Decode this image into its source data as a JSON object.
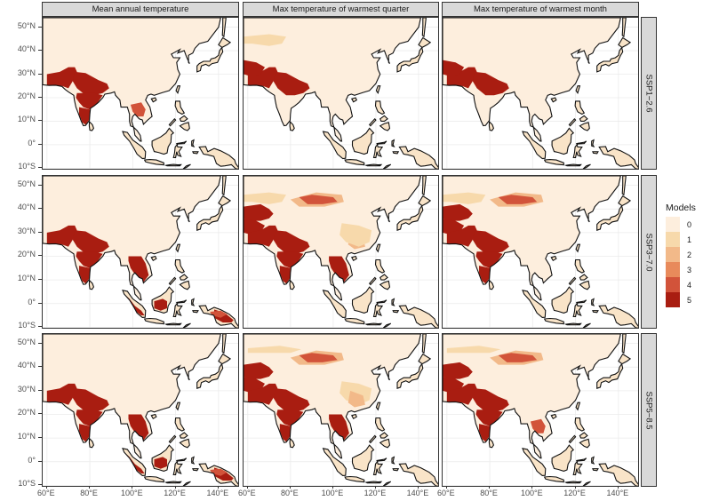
{
  "chart_data": {
    "type": "heatmap",
    "subtype": "faceted choropleth map grid",
    "columns": [
      "Mean annual temperature",
      "Max temperature of warmest quarter",
      "Max temperature of warmest month"
    ],
    "rows": [
      "SSP1−2.6",
      "SSP3−7.0",
      "SSP5−8.5"
    ],
    "legend": {
      "title": "Models",
      "position": "right",
      "levels": [
        {
          "value": "0",
          "color": "#fdeedd"
        },
        {
          "value": "1",
          "color": "#f7d9ab"
        },
        {
          "value": "2",
          "color": "#f2b989"
        },
        {
          "value": "3",
          "color": "#e88a5b"
        },
        {
          "value": "4",
          "color": "#d2533a"
        },
        {
          "value": "5",
          "color": "#a91d11"
        }
      ]
    },
    "x_axis": {
      "ticks": [
        "60°E",
        "80°E",
        "100°E",
        "120°E",
        "140°E"
      ],
      "range": [
        60,
        150
      ]
    },
    "y_axis": {
      "ticks": [
        "50°N",
        "40°N",
        "30°N",
        "20°N",
        "10°N",
        "0°",
        "10°S"
      ],
      "range": [
        -11,
        54
      ]
    },
    "grid": true,
    "panels_summary": [
      {
        "row": "SSP1−2.6",
        "col": "Mean annual temperature",
        "high_agreement_regions": [
          "NW India/Pakistan",
          "central India",
          "Indochina"
        ]
      },
      {
        "row": "SSP1−2.6",
        "col": "Max temperature of warmest quarter",
        "high_agreement_regions": [
          "Pakistan",
          "N India",
          "Afghanistan/Iran edge"
        ]
      },
      {
        "row": "SSP1−2.6",
        "col": "Max temperature of warmest month",
        "high_agreement_regions": [
          "Pakistan",
          "N India",
          "Afghanistan/Iran edge"
        ]
      },
      {
        "row": "SSP3−7.0",
        "col": "Mean annual temperature",
        "high_agreement_regions": [
          "Indian subcontinent",
          "Indochina",
          "Sumatra",
          "Borneo",
          "New Guinea"
        ]
      },
      {
        "row": "SSP3−7.0",
        "col": "Max temperature of warmest quarter",
        "high_agreement_regions": [
          "Central Asia",
          "Indian subcontinent",
          "Mongolia patch",
          "Indochina"
        ]
      },
      {
        "row": "SSP3−7.0",
        "col": "Max temperature of warmest month",
        "high_agreement_regions": [
          "Central Asia",
          "Indian subcontinent",
          "Mongolia patch"
        ]
      },
      {
        "row": "SSP5−8.5",
        "col": "Mean annual temperature",
        "high_agreement_regions": [
          "Indian subcontinent",
          "Indochina",
          "Sumatra",
          "Borneo",
          "New Guinea"
        ]
      },
      {
        "row": "SSP5−8.5",
        "col": "Max temperature of warmest quarter",
        "high_agreement_regions": [
          "Central Asia",
          "Indian subcontinent",
          "Mongolia",
          "China"
        ]
      },
      {
        "row": "SSP5−8.5",
        "col": "Max temperature of warmest month",
        "high_agreement_regions": [
          "Central Asia",
          "Indian subcontinent",
          "Mongolia",
          "Indochina"
        ]
      }
    ]
  },
  "headers": {
    "col1": "Mean annual temperature",
    "col2": "Max temperature of warmest quarter",
    "col3": "Max temperature of warmest month",
    "row1": "SSP1−2.6",
    "row2": "SSP3−7.0",
    "row3": "SSP5−8.5"
  },
  "axes": {
    "y": [
      "50°N",
      "40°N",
      "30°N",
      "20°N",
      "10°N",
      "0°",
      "10°S"
    ],
    "x": [
      "60°E",
      "80°E",
      "100°E",
      "120°E",
      "140°E"
    ]
  },
  "legend": {
    "title": "Models",
    "labels": [
      "0",
      "1",
      "2",
      "3",
      "4",
      "5"
    ],
    "colors": [
      "#fdeedd",
      "#f7d9ab",
      "#f2b989",
      "#e88a5b",
      "#d2533a",
      "#a91d11"
    ]
  }
}
